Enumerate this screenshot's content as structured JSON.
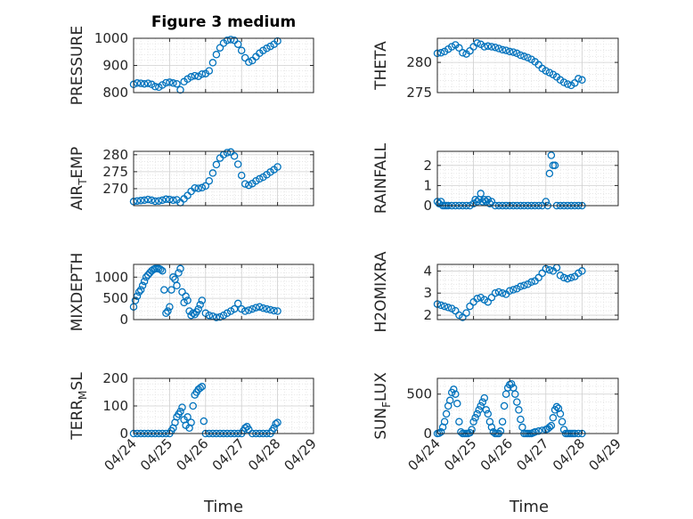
{
  "figure": {
    "title": "Figure 3 medium",
    "xlabel": "Time"
  },
  "colors": {
    "marker": "#0072BD",
    "grid": "#d9d9d9",
    "axis": "#262626",
    "background": "#ffffff"
  },
  "chart_data": [
    {
      "id": "pressure",
      "type": "scatter",
      "ylabel": {
        "main": "PRESSURE"
      },
      "ylim": [
        800,
        1000
      ],
      "yticks": [
        800,
        900,
        1000
      ],
      "ytick_labels": [
        "800",
        "900",
        "1000"
      ],
      "xlim": [
        0,
        5
      ],
      "grid": true,
      "x": [
        0,
        0.1,
        0.2,
        0.3,
        0.4,
        0.5,
        0.6,
        0.7,
        0.8,
        0.9,
        1.0,
        1.1,
        1.2,
        1.3,
        1.4,
        1.5,
        1.6,
        1.7,
        1.8,
        1.9,
        2.0,
        2.1,
        2.2,
        2.3,
        2.4,
        2.5,
        2.6,
        2.7,
        2.8,
        2.9,
        3.0,
        3.1,
        3.2,
        3.3,
        3.4,
        3.5,
        3.6,
        3.7,
        3.8,
        3.9,
        4.0
      ],
      "y": [
        830,
        835,
        834,
        832,
        834,
        830,
        822,
        820,
        828,
        836,
        838,
        835,
        832,
        810,
        840,
        850,
        858,
        862,
        860,
        868,
        870,
        880,
        910,
        940,
        965,
        982,
        992,
        995,
        992,
        978,
        955,
        928,
        912,
        918,
        932,
        945,
        955,
        963,
        970,
        978,
        990
      ]
    },
    {
      "id": "theta",
      "type": "scatter",
      "ylabel": {
        "main": "THETA"
      },
      "ylim": [
        275,
        284
      ],
      "yticks": [
        275,
        280
      ],
      "ytick_labels": [
        "275",
        "280"
      ],
      "xlim": [
        0,
        5
      ],
      "grid": true,
      "x": [
        0,
        0.1,
        0.2,
        0.3,
        0.4,
        0.5,
        0.6,
        0.7,
        0.8,
        0.9,
        1.0,
        1.1,
        1.2,
        1.3,
        1.4,
        1.5,
        1.6,
        1.7,
        1.8,
        1.9,
        2.0,
        2.1,
        2.2,
        2.3,
        2.4,
        2.5,
        2.6,
        2.7,
        2.8,
        2.9,
        3.0,
        3.1,
        3.2,
        3.3,
        3.4,
        3.5,
        3.6,
        3.7,
        3.8,
        3.9,
        4.0
      ],
      "y": [
        281.5,
        281.6,
        281.8,
        282.2,
        282.6,
        282.9,
        282.4,
        281.6,
        281.4,
        281.9,
        282.6,
        283.2,
        283.0,
        282.6,
        282.7,
        282.6,
        282.5,
        282.3,
        282.1,
        282.0,
        281.8,
        281.7,
        281.5,
        281.2,
        281.0,
        280.8,
        280.5,
        280.1,
        279.6,
        279.0,
        278.6,
        278.3,
        278.0,
        277.6,
        277.1,
        276.7,
        276.4,
        276.2,
        276.6,
        277.3,
        277.1
      ]
    },
    {
      "id": "air-temp",
      "type": "scatter",
      "ylabel": {
        "main": "AIR",
        "sub": "T",
        "rest": "EMP"
      },
      "ylim": [
        265,
        281
      ],
      "yticks": [
        270,
        275,
        280
      ],
      "ytick_labels": [
        "270",
        "275",
        "280"
      ],
      "xlim": [
        0,
        5
      ],
      "grid": true,
      "x": [
        0,
        0.1,
        0.2,
        0.3,
        0.4,
        0.5,
        0.6,
        0.7,
        0.8,
        0.9,
        1.0,
        1.1,
        1.2,
        1.3,
        1.4,
        1.5,
        1.6,
        1.7,
        1.8,
        1.9,
        2.0,
        2.1,
        2.2,
        2.3,
        2.4,
        2.5,
        2.6,
        2.7,
        2.8,
        2.9,
        3.0,
        3.1,
        3.2,
        3.3,
        3.4,
        3.5,
        3.6,
        3.7,
        3.8,
        3.9,
        4.0
      ],
      "y": [
        266.2,
        266.4,
        266.5,
        266.6,
        266.8,
        266.6,
        266.3,
        266.4,
        266.6,
        266.9,
        266.8,
        266.6,
        266.7,
        265.9,
        267.0,
        268.0,
        269.2,
        270.2,
        270.1,
        270.3,
        270.8,
        272.3,
        274.6,
        277.1,
        279.0,
        280.0,
        280.6,
        280.8,
        279.6,
        277.2,
        273.9,
        271.4,
        271.0,
        271.5,
        272.3,
        272.9,
        273.4,
        274.1,
        274.9,
        275.6,
        276.4
      ]
    },
    {
      "id": "rainfall",
      "type": "scatter",
      "ylabel": {
        "main": "RAINFALL"
      },
      "ylim": [
        0,
        2.7
      ],
      "yticks": [
        0,
        1,
        2
      ],
      "ytick_labels": [
        "0",
        "1",
        "2"
      ],
      "xlim": [
        0,
        5
      ],
      "grid": true,
      "x": [
        0,
        0.05,
        0.1,
        0.15,
        0.2,
        0.25,
        0.3,
        0.4,
        0.5,
        0.6,
        0.7,
        0.8,
        0.9,
        1.0,
        1.05,
        1.1,
        1.15,
        1.2,
        1.25,
        1.3,
        1.35,
        1.4,
        1.45,
        1.5,
        1.6,
        1.7,
        1.8,
        1.9,
        2.0,
        2.1,
        2.2,
        2.3,
        2.4,
        2.5,
        2.6,
        2.7,
        2.8,
        2.9,
        3.0,
        3.05,
        3.1,
        3.15,
        3.2,
        3.25,
        3.3,
        3.4,
        3.5,
        3.6,
        3.7,
        3.8,
        3.9,
        4.0
      ],
      "y": [
        0.2,
        0.1,
        0.2,
        0,
        0,
        0,
        0,
        0,
        0,
        0,
        0,
        0,
        0,
        0.1,
        0.3,
        0.2,
        0.3,
        0.6,
        0.2,
        0.3,
        0.2,
        0.3,
        0.1,
        0.2,
        0,
        0,
        0,
        0,
        0,
        0,
        0,
        0,
        0,
        0,
        0,
        0,
        0,
        0,
        0.2,
        0,
        1.6,
        2.5,
        2.0,
        2.0,
        0,
        0,
        0,
        0,
        0,
        0,
        0,
        0
      ]
    },
    {
      "id": "mixdepth",
      "type": "scatter",
      "ylabel": {
        "main": "MIXDEPTH"
      },
      "ylim": [
        0,
        1300
      ],
      "yticks": [
        0,
        500,
        1000
      ],
      "ytick_labels": [
        "0",
        "500",
        "1000"
      ],
      "xlim": [
        0,
        5
      ],
      "grid": true,
      "x": [
        0,
        0.05,
        0.1,
        0.15,
        0.2,
        0.25,
        0.3,
        0.35,
        0.4,
        0.45,
        0.5,
        0.55,
        0.6,
        0.65,
        0.7,
        0.75,
        0.8,
        0.85,
        0.9,
        0.95,
        1.0,
        1.05,
        1.1,
        1.15,
        1.2,
        1.25,
        1.3,
        1.35,
        1.4,
        1.45,
        1.5,
        1.55,
        1.6,
        1.65,
        1.7,
        1.75,
        1.8,
        1.85,
        1.9,
        2.0,
        2.1,
        2.2,
        2.3,
        2.4,
        2.5,
        2.6,
        2.7,
        2.8,
        2.9,
        3.0,
        3.1,
        3.2,
        3.3,
        3.4,
        3.5,
        3.6,
        3.7,
        3.8,
        3.9,
        4.0
      ],
      "y": [
        300,
        450,
        550,
        650,
        700,
        800,
        900,
        1000,
        1050,
        1100,
        1150,
        1180,
        1200,
        1200,
        1200,
        1180,
        1150,
        700,
        150,
        200,
        300,
        700,
        1000,
        950,
        800,
        1100,
        1200,
        650,
        400,
        550,
        450,
        200,
        100,
        150,
        120,
        180,
        250,
        350,
        450,
        150,
        100,
        80,
        50,
        60,
        100,
        150,
        200,
        250,
        380,
        250,
        200,
        220,
        250,
        280,
        300,
        270,
        250,
        230,
        210,
        200
      ]
    },
    {
      "id": "h2omixra",
      "type": "scatter",
      "ylabel": {
        "main": "H2OMIXRA"
      },
      "ylim": [
        1.8,
        4.3
      ],
      "yticks": [
        2,
        3,
        4
      ],
      "ytick_labels": [
        "2",
        "3",
        "4"
      ],
      "xlim": [
        0,
        5
      ],
      "grid": true,
      "x": [
        0,
        0.1,
        0.2,
        0.3,
        0.4,
        0.5,
        0.6,
        0.7,
        0.8,
        0.9,
        1.0,
        1.1,
        1.2,
        1.3,
        1.4,
        1.5,
        1.6,
        1.7,
        1.8,
        1.9,
        2.0,
        2.1,
        2.2,
        2.3,
        2.4,
        2.5,
        2.6,
        2.7,
        2.8,
        2.9,
        3.0,
        3.1,
        3.2,
        3.3,
        3.4,
        3.5,
        3.6,
        3.7,
        3.8,
        3.9,
        4.0
      ],
      "y": [
        2.5,
        2.45,
        2.4,
        2.35,
        2.3,
        2.2,
        2.0,
        1.9,
        2.1,
        2.4,
        2.6,
        2.75,
        2.8,
        2.7,
        2.6,
        2.8,
        3.0,
        3.05,
        3.0,
        2.95,
        3.1,
        3.15,
        3.2,
        3.3,
        3.35,
        3.4,
        3.5,
        3.55,
        3.7,
        3.9,
        4.1,
        4.05,
        4.0,
        4.15,
        3.8,
        3.7,
        3.65,
        3.7,
        3.75,
        3.9,
        4.0
      ]
    },
    {
      "id": "terr-msl",
      "type": "scatter",
      "ylabel": {
        "main": "TERR",
        "sub": "M",
        "rest": "SL"
      },
      "ylim": [
        0,
        200
      ],
      "yticks": [
        0,
        100,
        200
      ],
      "ytick_labels": [
        "0",
        "100",
        "200"
      ],
      "xlim": [
        0,
        5
      ],
      "grid": true,
      "xticks": [
        0,
        1,
        2,
        3,
        4,
        5
      ],
      "xtick_labels": [
        "04/24",
        "04/25",
        "04/26",
        "04/27",
        "04/28",
        "04/29"
      ],
      "x": [
        0,
        0.1,
        0.2,
        0.3,
        0.4,
        0.5,
        0.6,
        0.7,
        0.8,
        0.9,
        1.0,
        1.05,
        1.1,
        1.15,
        1.2,
        1.25,
        1.3,
        1.35,
        1.4,
        1.45,
        1.5,
        1.55,
        1.6,
        1.65,
        1.7,
        1.75,
        1.8,
        1.85,
        1.9,
        1.95,
        2.0,
        2.1,
        2.2,
        2.3,
        2.4,
        2.5,
        2.6,
        2.7,
        2.8,
        2.9,
        3.0,
        3.05,
        3.1,
        3.15,
        3.2,
        3.3,
        3.4,
        3.5,
        3.6,
        3.7,
        3.8,
        3.85,
        3.9,
        3.95,
        4.0
      ],
      "y": [
        0,
        0,
        0,
        0,
        0,
        0,
        0,
        0,
        0,
        0,
        0,
        10,
        20,
        40,
        60,
        70,
        80,
        95,
        50,
        30,
        60,
        20,
        40,
        100,
        140,
        150,
        160,
        165,
        170,
        45,
        0,
        0,
        0,
        0,
        0,
        0,
        0,
        0,
        0,
        0,
        0,
        10,
        20,
        25,
        15,
        0,
        0,
        0,
        0,
        0,
        0,
        10,
        20,
        35,
        40
      ]
    },
    {
      "id": "sun-flux",
      "type": "scatter",
      "ylabel": {
        "main": "SUN",
        "sub": "F",
        "rest": "LUX"
      },
      "ylim": [
        0,
        700
      ],
      "yticks": [
        0,
        500
      ],
      "ytick_labels": [
        "0",
        "500"
      ],
      "xlim": [
        0,
        5
      ],
      "grid": true,
      "xticks": [
        0,
        1,
        2,
        3,
        4,
        5
      ],
      "xtick_labels": [
        "04/24",
        "04/25",
        "04/26",
        "04/27",
        "04/28",
        "04/29"
      ],
      "x": [
        0,
        0.05,
        0.1,
        0.15,
        0.2,
        0.25,
        0.3,
        0.35,
        0.4,
        0.45,
        0.5,
        0.55,
        0.6,
        0.65,
        0.7,
        0.75,
        0.8,
        0.85,
        0.9,
        0.95,
        1.0,
        1.05,
        1.1,
        1.15,
        1.2,
        1.25,
        1.3,
        1.35,
        1.4,
        1.45,
        1.5,
        1.55,
        1.6,
        1.65,
        1.7,
        1.75,
        1.8,
        1.85,
        1.9,
        1.95,
        2.0,
        2.05,
        2.1,
        2.15,
        2.2,
        2.25,
        2.3,
        2.35,
        2.4,
        2.45,
        2.5,
        2.55,
        2.6,
        2.65,
        2.7,
        2.8,
        2.9,
        3.0,
        3.05,
        3.1,
        3.15,
        3.2,
        3.25,
        3.3,
        3.35,
        3.4,
        3.45,
        3.5,
        3.55,
        3.6,
        3.65,
        3.7,
        3.75,
        3.8,
        3.9,
        4.0
      ],
      "y": [
        0,
        5,
        20,
        80,
        150,
        250,
        350,
        420,
        520,
        560,
        500,
        380,
        150,
        20,
        0,
        0,
        0,
        0,
        10,
        50,
        150,
        200,
        250,
        300,
        350,
        400,
        450,
        300,
        250,
        150,
        80,
        20,
        0,
        0,
        0,
        30,
        150,
        350,
        500,
        580,
        620,
        630,
        580,
        500,
        400,
        300,
        180,
        80,
        0,
        0,
        0,
        0,
        0,
        10,
        20,
        30,
        40,
        50,
        60,
        80,
        100,
        200,
        300,
        340,
        320,
        250,
        150,
        50,
        0,
        0,
        0,
        0,
        0,
        0,
        0,
        0
      ]
    }
  ]
}
